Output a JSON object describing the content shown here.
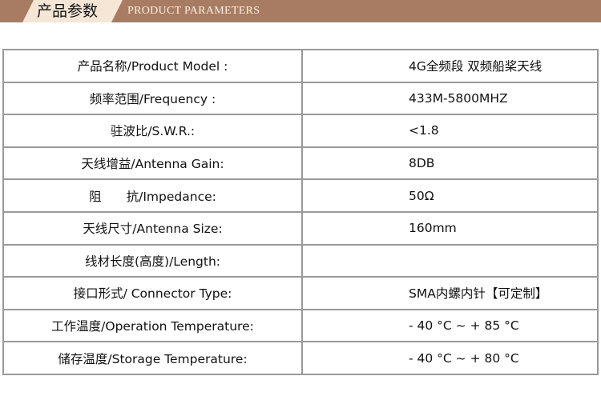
{
  "header": {
    "title_cn": "产品参数",
    "title_en": "PRODUCT  PARAMETERS"
  },
  "colors": {
    "banner": "#a87c62",
    "tag": "#f6e6d6"
  },
  "rows": [
    {
      "label": "产品名称/Product Model :",
      "value": "4G全频段 双频船桨天线"
    },
    {
      "label": "频率范围/Frequency :",
      "value": "433M-5800MHZ"
    },
    {
      "label": "驻波比/S.W.R.:",
      "value": "<1.8"
    },
    {
      "label": "天线增益/Antenna Gain:",
      "value": "8DB"
    },
    {
      "label": "阻　　抗/Impedance:",
      "value": "50Ω"
    },
    {
      "label": "天线尺寸/Antenna Size:",
      "value": "160mm"
    },
    {
      "label": "线材长度(高度)/Length:",
      "value": ""
    },
    {
      "label": "接口形式/  Connector Type:",
      "value": "SMA内螺内针【可定制】"
    },
    {
      "label": "工作温度/Operation Temperature:",
      "value": "- 40 °C ~ + 85 °C"
    },
    {
      "label": "储存温度/Storage Temperature:",
      "value": "- 40 °C ~ + 80 °C"
    }
  ]
}
